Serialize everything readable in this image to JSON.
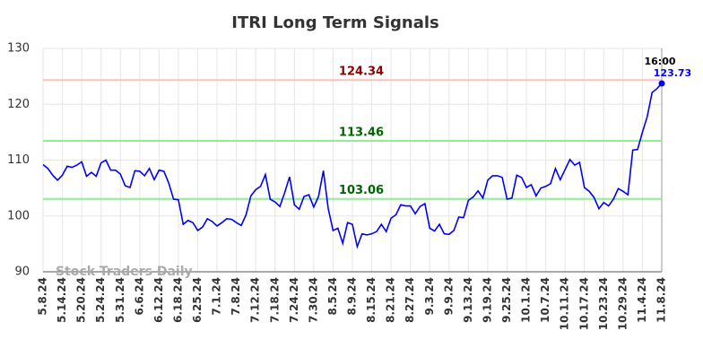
{
  "chart_data": {
    "type": "line",
    "title": "ITRI Long Term Signals",
    "watermark": "Stock Traders Daily",
    "end_label": "16:00",
    "categories": [
      "5.8.24",
      null,
      null,
      null,
      "5.14.24",
      null,
      null,
      null,
      "5.20.24",
      null,
      null,
      null,
      "5.24.24",
      null,
      null,
      null,
      "5.31.24",
      null,
      null,
      null,
      "6.6.24",
      null,
      null,
      null,
      "6.12.24",
      null,
      null,
      null,
      "6.18.24",
      null,
      null,
      null,
      "6.25.24",
      null,
      null,
      null,
      "7.1.24",
      null,
      null,
      null,
      "7.8.24",
      null,
      null,
      null,
      "7.12.24",
      null,
      null,
      null,
      "7.18.24",
      null,
      null,
      null,
      "7.24.24",
      null,
      null,
      null,
      "7.30.24",
      null,
      null,
      null,
      "8.5.24",
      null,
      null,
      null,
      "8.9.24",
      null,
      null,
      null,
      "8.15.24",
      null,
      null,
      null,
      "8.21.24",
      null,
      null,
      null,
      "8.27.24",
      null,
      null,
      null,
      "9.3.24",
      null,
      null,
      null,
      "9.9.24",
      null,
      null,
      null,
      "9.13.24",
      null,
      null,
      null,
      "9.19.24",
      null,
      null,
      null,
      "9.25.24",
      null,
      null,
      null,
      "10.1.24",
      null,
      null,
      null,
      "10.7.24",
      null,
      null,
      null,
      "10.11.24",
      null,
      null,
      null,
      "10.17.24",
      null,
      null,
      null,
      "10.23.24",
      null,
      null,
      null,
      "10.29.24",
      null,
      null,
      null,
      "11.4.24",
      null,
      null,
      null,
      "11.8.24"
    ],
    "values": [
      109.2,
      108.5,
      107.3,
      106.4,
      107.3,
      108.9,
      108.7,
      109.1,
      109.7,
      107.1,
      107.8,
      107.1,
      109.5,
      110.0,
      108.2,
      108.2,
      107.5,
      105.4,
      105.1,
      108.1,
      108.0,
      107.2,
      108.5,
      106.5,
      108.2,
      108.0,
      105.9,
      103.0,
      102.9,
      98.5,
      99.2,
      98.8,
      97.4,
      98.0,
      99.5,
      99.0,
      98.2,
      98.8,
      99.5,
      99.4,
      98.8,
      98.3,
      100.2,
      103.6,
      104.7,
      105.3,
      107.4,
      103.0,
      102.5,
      101.7,
      104.2,
      107.0,
      102.0,
      101.2,
      103.5,
      103.8,
      101.6,
      103.5,
      108.1,
      101.3,
      97.4,
      97.8,
      95.1,
      98.8,
      98.5,
      94.5,
      96.8,
      96.6,
      96.8,
      97.2,
      98.5,
      97.2,
      99.6,
      100.2,
      102.0,
      101.8,
      101.8,
      100.4,
      101.7,
      102.2,
      97.8,
      97.3,
      98.5,
      96.8,
      96.7,
      97.4,
      99.8,
      99.7,
      102.8,
      103.4,
      104.5,
      103.2,
      106.4,
      107.2,
      107.2,
      106.9,
      103.0,
      103.2,
      107.3,
      106.9,
      105.1,
      105.6,
      103.6,
      105.0,
      105.3,
      105.8,
      108.5,
      106.5,
      108.3,
      110.1,
      109.1,
      109.6,
      105.1,
      104.4,
      103.3,
      101.3,
      102.4,
      101.8,
      103.0,
      104.9,
      104.4,
      103.8,
      111.8,
      111.9,
      115.0,
      117.8,
      122.1,
      122.8,
      123.73
    ],
    "color": "#0000ff",
    "hlines": [
      {
        "value": 124.34,
        "color": "#ffbfbf",
        "label_color": "#8b0000"
      },
      {
        "value": 113.46,
        "color": "#90ee90",
        "label_color": "#006400"
      },
      {
        "value": 103.06,
        "color": "#90ee90",
        "label_color": "#006400"
      }
    ],
    "ylim": [
      90,
      130
    ],
    "yticks": [
      90,
      100,
      110,
      120,
      130
    ],
    "grid": true
  }
}
